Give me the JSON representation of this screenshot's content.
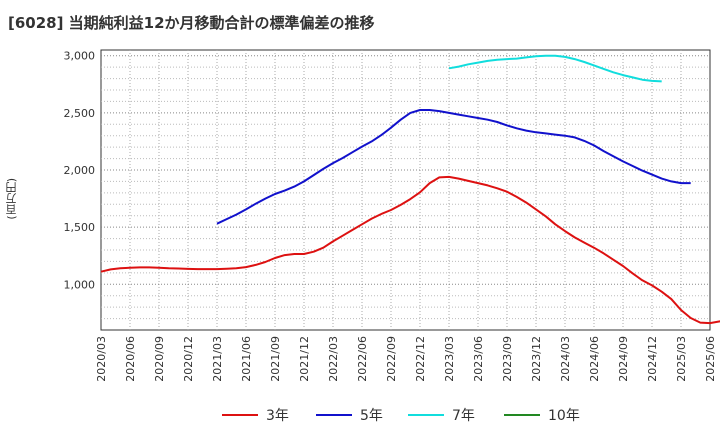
{
  "title": "[6028]  当期純利益12か月移動合計の標準偏差の推移",
  "chart_data": {
    "type": "line",
    "title": "[6028]  当期純利益12か月移動合計の標準偏差の推移",
    "xlabel": "",
    "ylabel": "(百万円)",
    "ylim": [
      600,
      3050
    ],
    "yticks": [
      1000,
      1500,
      2000,
      2500,
      3000
    ],
    "ytick_labels": [
      "1,000",
      "1,500",
      "2,000",
      "2,500",
      "3,000"
    ],
    "xlim": [
      "2020/03",
      "2025/06"
    ],
    "xtick_labels": [
      "2020/03",
      "2020/06",
      "2020/09",
      "2020/12",
      "2021/03",
      "2021/06",
      "2021/09",
      "2021/12",
      "2022/03",
      "2022/06",
      "2022/09",
      "2022/12",
      "2023/03",
      "2023/06",
      "2023/09",
      "2023/12",
      "2024/03",
      "2024/06",
      "2024/09",
      "2024/12",
      "2025/03",
      "2025/06"
    ],
    "grid": true,
    "legend_position": "bottom",
    "series": [
      {
        "name": "3年",
        "color": "#dd1111",
        "start": "2020/03",
        "values": [
          1110,
          1130,
          1140,
          1145,
          1148,
          1148,
          1145,
          1140,
          1138,
          1135,
          1133,
          1133,
          1133,
          1136,
          1140,
          1150,
          1170,
          1195,
          1230,
          1255,
          1265,
          1265,
          1285,
          1320,
          1375,
          1425,
          1475,
          1525,
          1575,
          1615,
          1650,
          1695,
          1745,
          1805,
          1885,
          1935,
          1940,
          1925,
          1905,
          1885,
          1865,
          1840,
          1810,
          1765,
          1715,
          1655,
          1595,
          1525,
          1465,
          1410,
          1365,
          1320,
          1270,
          1215,
          1160,
          1095,
          1035,
          990,
          935,
          870,
          775,
          705,
          665,
          660,
          675,
          705,
          735
        ]
      },
      {
        "name": "5年",
        "color": "#1111cc",
        "start": "2021/03",
        "values": [
          1530,
          1570,
          1610,
          1655,
          1705,
          1750,
          1790,
          1820,
          1855,
          1900,
          1955,
          2010,
          2060,
          2105,
          2155,
          2205,
          2250,
          2305,
          2370,
          2440,
          2500,
          2525,
          2525,
          2515,
          2500,
          2485,
          2470,
          2455,
          2440,
          2420,
          2390,
          2365,
          2345,
          2330,
          2320,
          2310,
          2300,
          2285,
          2255,
          2215,
          2165,
          2120,
          2075,
          2035,
          1995,
          1960,
          1925,
          1900,
          1885,
          1885
        ]
      },
      {
        "name": "7年",
        "color": "#11dddd",
        "start": "2023/03",
        "values": [
          2890,
          2905,
          2925,
          2940,
          2955,
          2965,
          2970,
          2975,
          2985,
          2995,
          3000,
          3000,
          2990,
          2970,
          2945,
          2915,
          2885,
          2855,
          2830,
          2810,
          2790,
          2780,
          2775
        ]
      },
      {
        "name": "10年",
        "color": "#228822",
        "start": "2025/03",
        "values": []
      }
    ]
  }
}
